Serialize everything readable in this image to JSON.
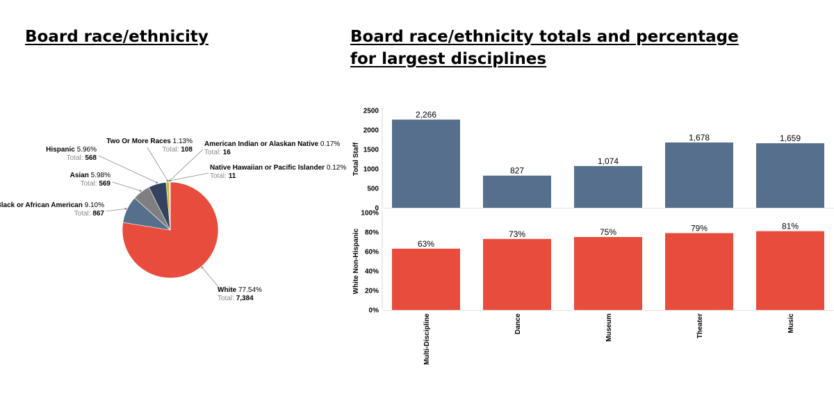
{
  "titles": {
    "left": "Board race/ethnicity",
    "right": "Board race/ethnicity totals and percentage for largest disciplines"
  },
  "colors": {
    "white": "#e84c3d",
    "black": "#566f8c",
    "asian": "#7f7f7f",
    "hispanic": "#33425f",
    "two_or_more": "#c7bb3a",
    "american_indian": "#8bc34a",
    "native_hawaiian": "#e67e22",
    "staff_bar": "#566f8c",
    "pct_bar": "#e84c3d"
  },
  "chart_data": [
    {
      "type": "pie",
      "title": "Board race/ethnicity",
      "slices": [
        {
          "label": "White",
          "percent": "77.54%",
          "total_label": "Total:",
          "total": "7,384",
          "value": 7384,
          "color": "#e84c3d"
        },
        {
          "label": "Black or African American",
          "percent": "9.10%",
          "total_label": "Total:",
          "total": "867",
          "value": 867,
          "color": "#566f8c"
        },
        {
          "label": "Asian",
          "percent": "5.98%",
          "total_label": "Total:",
          "total": "569",
          "value": 569,
          "color": "#7f7f7f"
        },
        {
          "label": "Hispanic",
          "percent": "5.96%",
          "total_label": "Total:",
          "total": "568",
          "value": 568,
          "color": "#33425f"
        },
        {
          "label": "Two Or More Races",
          "percent": "1.13%",
          "total_label": "Total:",
          "total": "108",
          "value": 108,
          "color": "#c7bb3a"
        },
        {
          "label": "American Indian or Alaskan Native",
          "percent": "0.17%",
          "total_label": "Total:",
          "total": "16",
          "value": 16,
          "color": "#8bc34a"
        },
        {
          "label": "Native Hawaiian or Pacific Islander",
          "percent": "0.12%",
          "total_label": "Total:",
          "total": "11",
          "value": 11,
          "color": "#e67e22"
        }
      ]
    },
    {
      "type": "bar",
      "title": "Board race/ethnicity totals and percentage for largest disciplines",
      "categories": [
        "Multi-Discipline",
        "Dance",
        "Museum",
        "Theater",
        "Music"
      ],
      "panels": [
        {
          "ylabel": "Total Staff",
          "values": [
            2266,
            827,
            1074,
            1678,
            1659
          ],
          "value_labels": [
            "2,266",
            "827",
            "1,074",
            "1,678",
            "1,659"
          ],
          "ylim": [
            0,
            2500
          ],
          "ticks": [
            "0",
            "500",
            "1000",
            "1500",
            "2000",
            "2500"
          ],
          "tick_values": [
            0,
            500,
            1000,
            1500,
            2000,
            2500
          ],
          "color": "#566f8c"
        },
        {
          "ylabel": "White Non-Hispanic",
          "values": [
            63,
            73,
            75,
            79,
            81
          ],
          "value_labels": [
            "63%",
            "73%",
            "75%",
            "79%",
            "81%"
          ],
          "ylim": [
            0,
            100
          ],
          "ticks": [
            "0%",
            "20%",
            "40%",
            "60%",
            "80%",
            "100%"
          ],
          "tick_values": [
            0,
            20,
            40,
            60,
            80,
            100
          ],
          "color": "#e84c3d"
        }
      ]
    }
  ]
}
